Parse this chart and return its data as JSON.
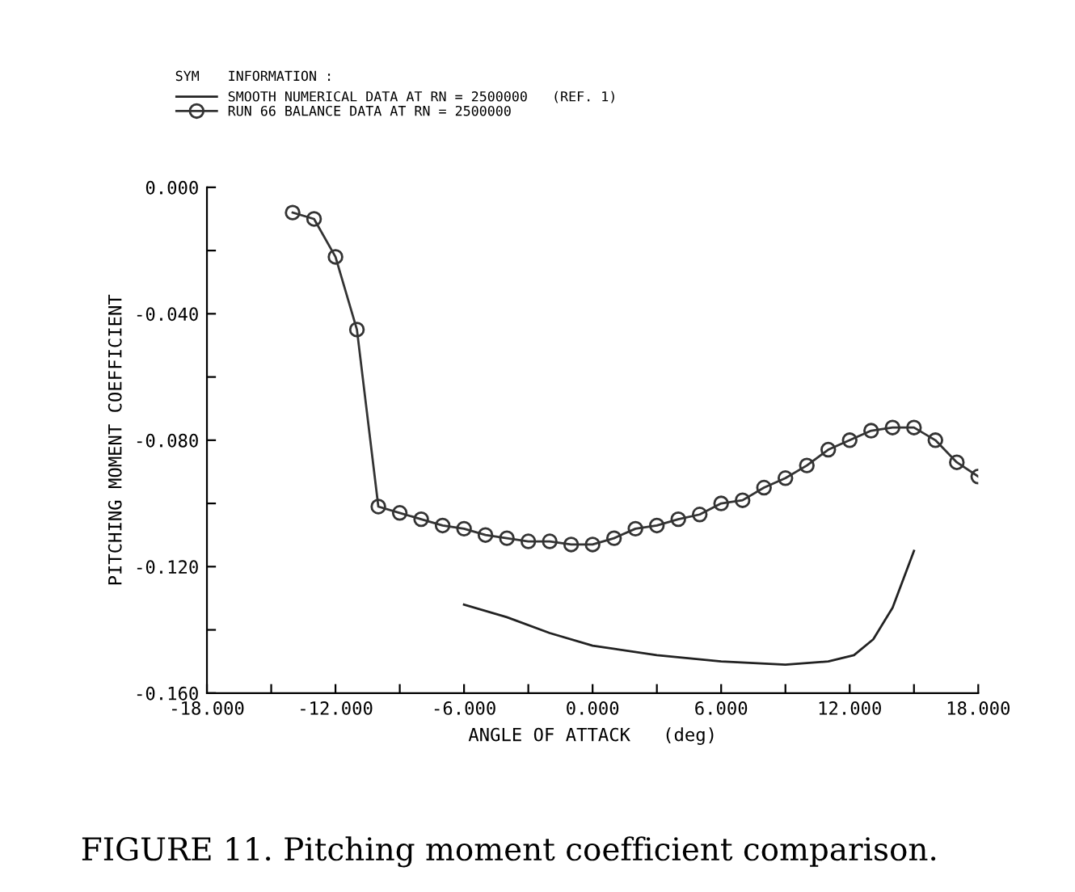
{
  "chart_data": {
    "type": "line",
    "xlabel": "ANGLE OF ATTACK   (deg)",
    "ylabel": "PITCHING MOMENT COEFFICIENT",
    "legend_title": "INFORMATION :",
    "annotations": [
      "SYM",
      "FIGURE 11. Pitching moment coefficient comparison."
    ],
    "series": [
      {
        "name": "SMOOTH NUMERICAL DATA AT RN = 2500000   (REF. 1)",
        "color": "#222222",
        "marker": "none",
        "x": [
          -6,
          -4,
          -2,
          0,
          3,
          6,
          9,
          11,
          12.2,
          13.1,
          14,
          15
        ],
        "values": [
          -0.132,
          -0.136,
          -0.141,
          -0.145,
          -0.148,
          -0.15,
          -0.151,
          -0.15,
          -0.148,
          -0.143,
          -0.133,
          -0.115
        ]
      },
      {
        "name": "RUN 66 BALANCE DATA AT RN = 2500000",
        "color": "#333333",
        "marker": "circle",
        "x": [
          -14,
          -13,
          -12,
          -11,
          -10,
          -9,
          -8,
          -7,
          -6,
          -5,
          -4,
          -3,
          -2,
          -1,
          0,
          1,
          2,
          3,
          4,
          5,
          6,
          7,
          8,
          9,
          10,
          11,
          12,
          13,
          14,
          15,
          16,
          17,
          18
        ],
        "values": [
          -0.008,
          -0.01,
          -0.022,
          -0.045,
          -0.101,
          -0.103,
          -0.105,
          -0.107,
          -0.108,
          -0.11,
          -0.111,
          -0.112,
          -0.112,
          -0.113,
          -0.113,
          -0.111,
          -0.108,
          -0.107,
          -0.105,
          -0.1035,
          -0.1,
          -0.099,
          -0.095,
          -0.092,
          -0.088,
          -0.083,
          -0.08,
          -0.077,
          -0.076,
          -0.076,
          -0.08,
          -0.087,
          -0.0915
        ]
      }
    ],
    "xlim": [
      -18,
      18
    ],
    "ylim": [
      -0.16,
      0
    ],
    "xticks": [
      {
        "value": -18,
        "label": "-18.000"
      },
      {
        "value": -15,
        "label": null
      },
      {
        "value": -12,
        "label": "-12.000"
      },
      {
        "value": -9,
        "label": null
      },
      {
        "value": -6,
        "label": "-6.000"
      },
      {
        "value": -3,
        "label": null
      },
      {
        "value": 0,
        "label": "0.000"
      },
      {
        "value": 3,
        "label": null
      },
      {
        "value": 6,
        "label": "6.000"
      },
      {
        "value": 9,
        "label": null
      },
      {
        "value": 12,
        "label": "12.000"
      },
      {
        "value": 15,
        "label": null
      },
      {
        "value": 18,
        "label": "18.000"
      }
    ],
    "yticks": [
      {
        "value": -0.16,
        "label": "-0.160"
      },
      {
        "value": -0.14,
        "label": null
      },
      {
        "value": -0.12,
        "label": "-0.120"
      },
      {
        "value": -0.1,
        "label": null
      },
      {
        "value": -0.08,
        "label": "-0.080"
      },
      {
        "value": -0.06,
        "label": null
      },
      {
        "value": -0.04,
        "label": "-0.040"
      },
      {
        "value": -0.02,
        "label": null
      },
      {
        "value": 0,
        "label": "0.000"
      }
    ],
    "grid": false,
    "legend": "top",
    "line_style": "solid"
  }
}
